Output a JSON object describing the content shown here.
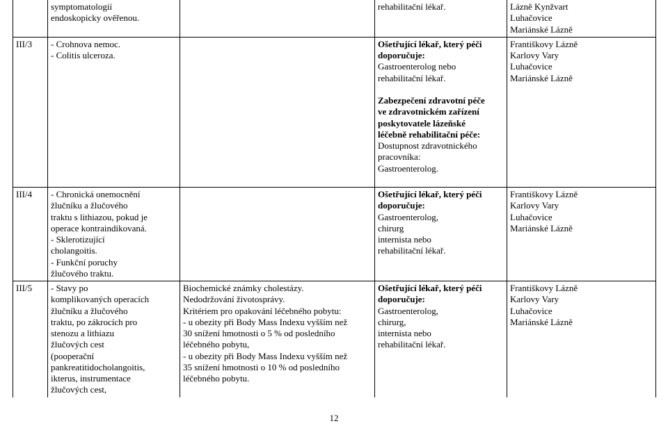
{
  "page_number": "12",
  "rows": {
    "r0": {
      "code": "",
      "col2_l1": "symptomatologií",
      "col2_l2": "endoskopicky ověřenou.",
      "col4_l1": "rehabilitační lékař.",
      "col5_l1": "Lázně Kynžvart",
      "col5_l2": "Luhačovice",
      "col5_l3": "Mariánské Lázně"
    },
    "r1": {
      "code": "III/3",
      "col2_l1": "- Crohnova nemoc.",
      "col2_l2": "- Colitis ulceroza.",
      "col4_p1_l1": "Ošetřující lékař, který péči",
      "col4_p1_l2": "doporučuje:",
      "col4_p1_l3": "Gastroenterolog nebo",
      "col4_p1_l4": "rehabilitační lékař.",
      "col4_p2_l1": "Zabezpečení zdravotní péče",
      "col4_p2_l2": "ve zdravotnickém zařízení",
      "col4_p2_l3": "poskytovatele lázeňské",
      "col4_p2_l4": "léčebně rehabilitační péče:",
      "col4_p2_l5": "Dostupnost zdravotnického",
      "col4_p2_l6": "pracovníka:",
      "col4_p2_l7": "Gastroenterolog.",
      "col5_l1": "Františkovy Lázně",
      "col5_l2": "Karlovy Vary",
      "col5_l3": "Luhačovice",
      "col5_l4": "Mariánské Lázně"
    },
    "r2": {
      "code": "III/4",
      "col2_l1": "- Chronická onemocnění",
      "col2_l2": "žlučníku a žlučového",
      "col2_l3": "traktu s lithiazou, pokud je",
      "col2_l4": "operace kontraindikovaná.",
      "col2_l5": "- Sklerotizující",
      "col2_l6": "cholangoitis.",
      "col2_l7": "- Funkční poruchy",
      "col2_l8": "žlučového traktu.",
      "col4_l1": "Ošetřující lékař, který péči",
      "col4_l2": "doporučuje:",
      "col4_l3": "Gastroenterolog,",
      "col4_l4": "chirurg",
      "col4_l5": "internista nebo",
      "col4_l6": "rehabilitační lékař.",
      "col5_l1": "Františkovy Lázně",
      "col5_l2": "Karlovy Vary",
      "col5_l3": "Luhačovice",
      "col5_l4": "Mariánské Lázně"
    },
    "r3": {
      "code": "III/5",
      "col2_l1": "- Stavy po",
      "col2_l2": "komplikovaných operacích",
      "col2_l3": "žlučníku a žlučového",
      "col2_l4": "traktu, po zákrocích pro",
      "col2_l5": "stenozu a lithiazu",
      "col2_l6": "žlučových cest",
      "col2_l7": "(pooperační",
      "col2_l8": "pankreatitidocholangoitis,",
      "col2_l9": "ikterus, instrumentace",
      "col2_l10": "žlučových cest,",
      "col3_l1": "Biochemické známky cholestázy.",
      "col3_l2": "Nedodržování životosprávy.",
      "col3_l3": "Kritériem pro opakování léčebného pobytu:",
      "col3_l4": "- u obezity při Body Mass Indexu vyšším než",
      "col3_l5": "30 snížení hmotnosti o 5 % od posledního",
      "col3_l6": "léčebného pobytu,",
      "col3_l7": "- u obezity při Body Mass Indexu vyšším než",
      "col3_l8": "35 snížení hmotnosti o 10 % od posledního",
      "col3_l9": "léčebného pobytu.",
      "col4_l1": "Ošetřující lékař, který péči",
      "col4_l2": "doporučuje:",
      "col4_l3": "Gastroenterolog,",
      "col4_l4": "chirurg,",
      "col4_l5": "internista nebo",
      "col4_l6": "rehabilitační lékař.",
      "col5_l1": "Františkovy Lázně",
      "col5_l2": "Karlovy Vary",
      "col5_l3": "Luhačovice",
      "col5_l4": "Mariánské Lázně"
    }
  }
}
